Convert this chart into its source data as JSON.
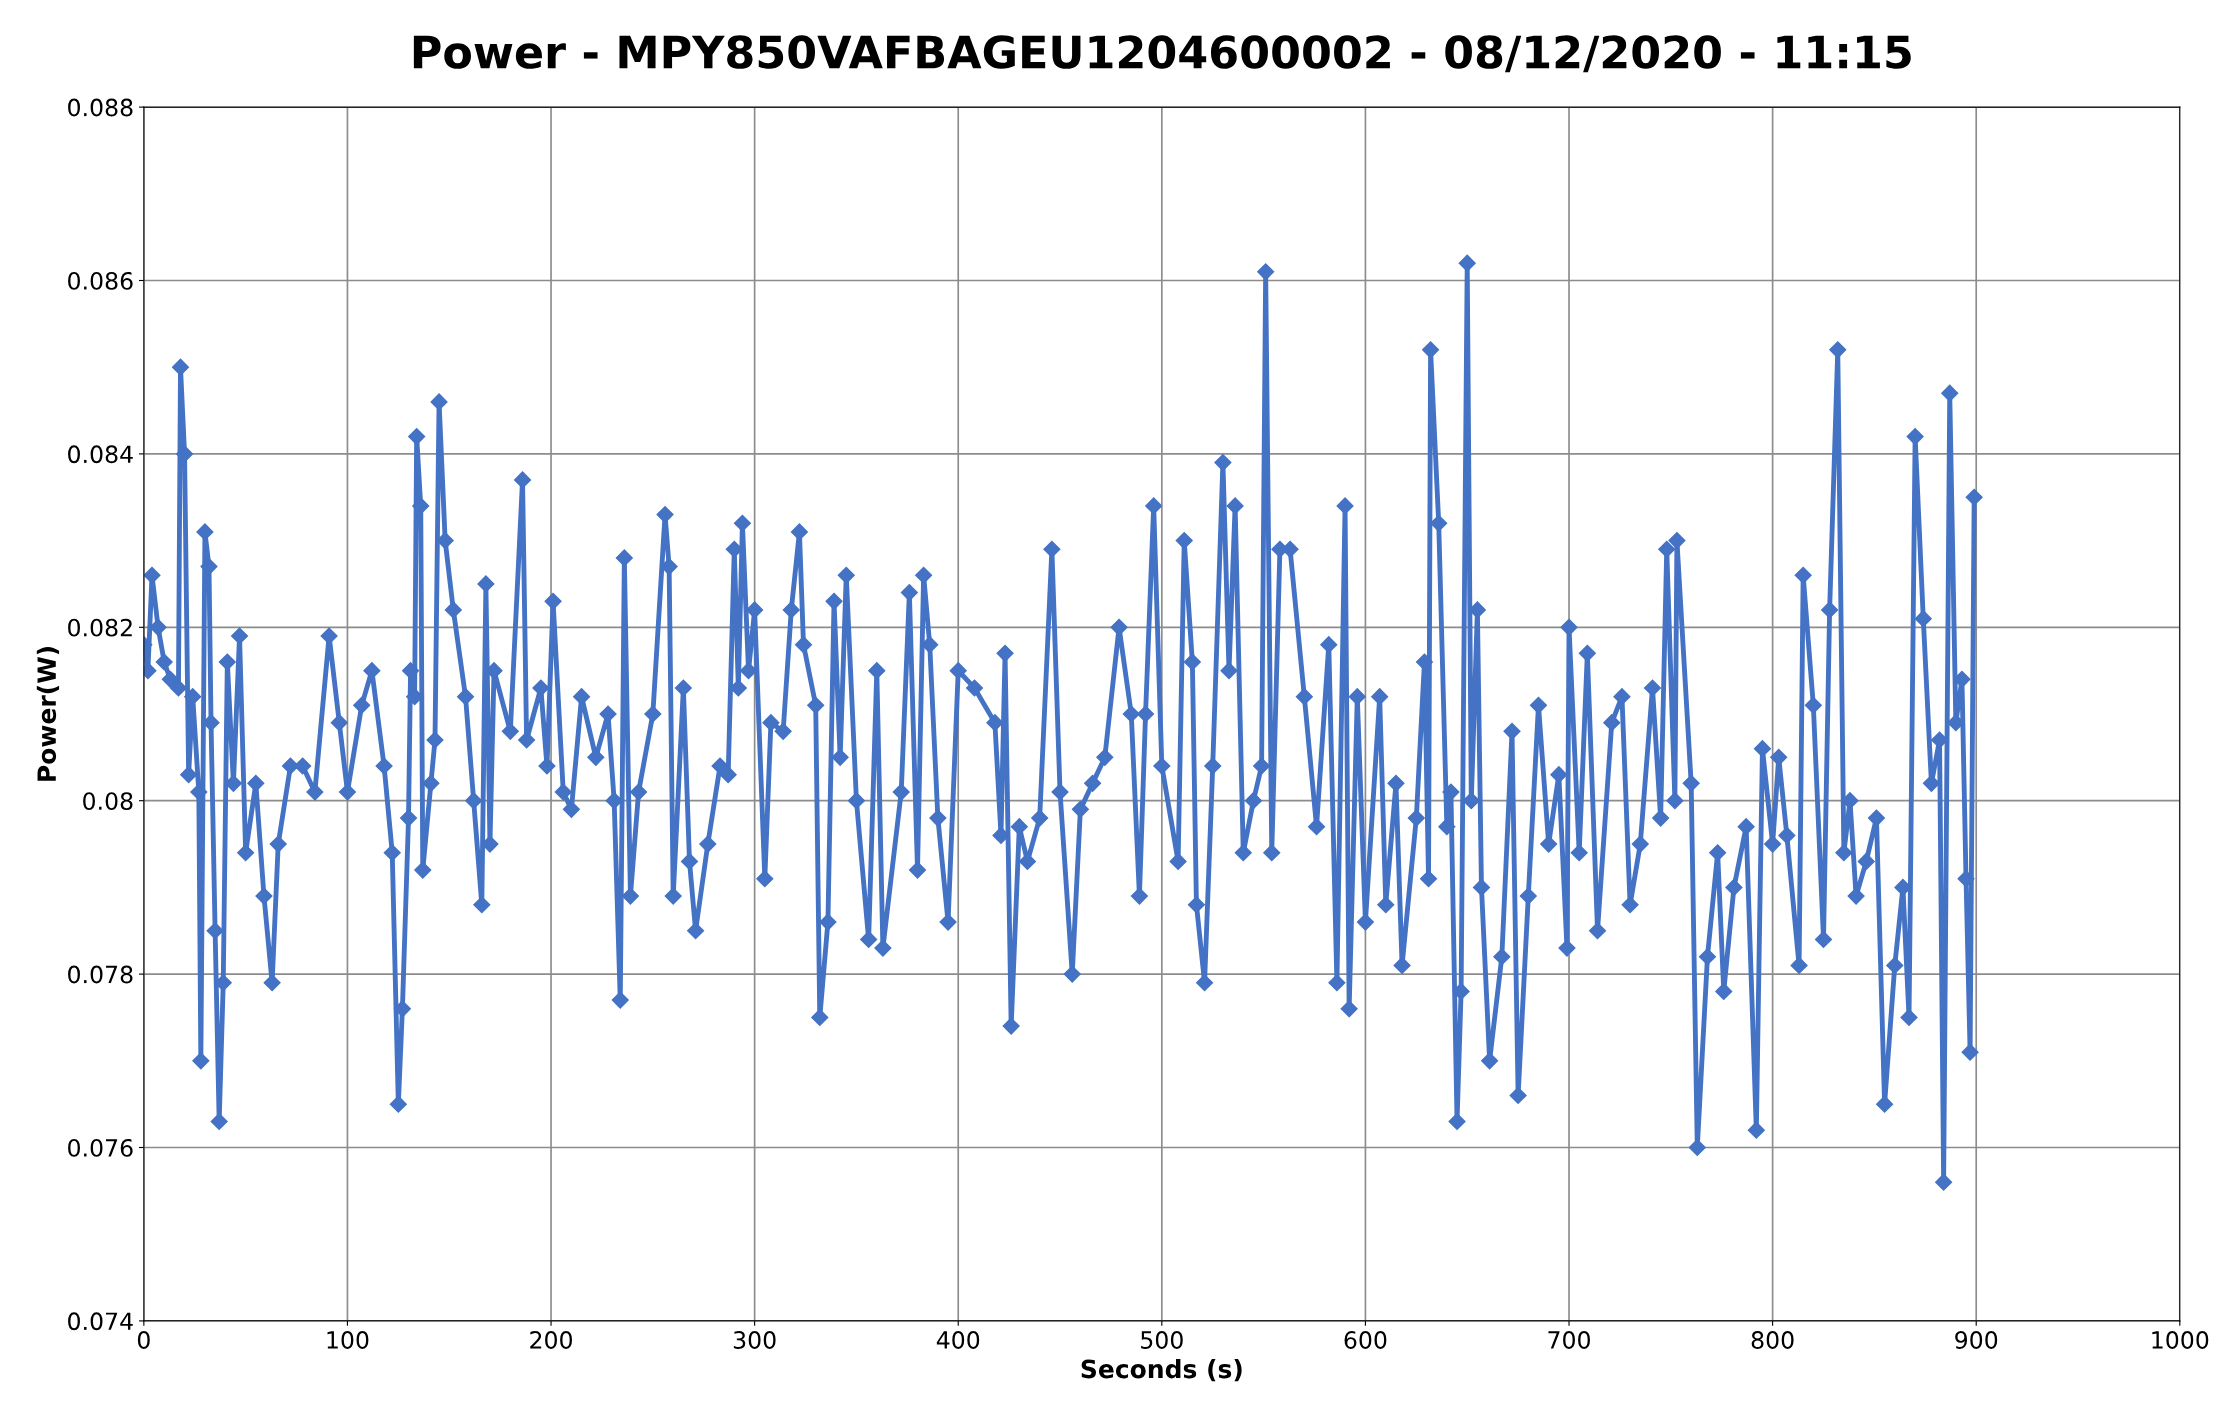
{
  "chart_data": {
    "type": "line",
    "title": "Power - MPY850VAFBAGEU1204600002 - 08/12/2020 - 11:15",
    "xlabel": "Seconds (s)",
    "ylabel": "Power(W)",
    "xlim": [
      0,
      1000
    ],
    "xticks": [
      0,
      100,
      200,
      300,
      400,
      500,
      600,
      700,
      800,
      900,
      1000
    ],
    "ylim": [
      0.074,
      0.088
    ],
    "yticks": [
      0.074,
      0.076,
      0.078,
      0.08,
      0.082,
      0.084,
      0.086,
      0.088
    ],
    "grid": true,
    "marker": "diamond",
    "line_style": "solid",
    "legend": false,
    "series": [
      {
        "color": "#4472c4",
        "x": [
          0,
          2,
          4,
          7,
          10,
          13,
          17,
          18,
          20,
          22,
          24,
          27,
          28,
          30,
          32,
          33,
          35,
          37,
          39,
          41,
          44,
          47,
          50,
          55,
          59,
          63,
          66,
          72,
          78,
          84,
          91,
          96,
          100,
          107,
          112,
          118,
          122,
          125,
          127,
          130,
          131,
          133,
          134,
          136,
          137,
          141,
          143,
          145,
          148,
          152,
          158,
          162,
          166,
          168,
          170,
          172,
          180,
          186,
          188,
          195,
          198,
          201,
          206,
          210,
          215,
          222,
          228,
          231,
          234,
          236,
          239,
          243,
          250,
          256,
          258,
          260,
          265,
          268,
          271,
          277,
          283,
          287,
          290,
          292,
          294,
          297,
          300,
          305,
          308,
          314,
          318,
          322,
          324,
          330,
          332,
          336,
          339,
          342,
          345,
          350,
          356,
          360,
          363,
          372,
          376,
          380,
          383,
          386,
          390,
          395,
          400,
          408,
          418,
          421,
          423,
          426,
          430,
          434,
          440,
          446,
          450,
          456,
          460,
          466,
          472,
          479,
          485,
          489,
          492,
          496,
          500,
          508,
          511,
          515,
          517,
          521,
          525,
          530,
          533,
          536,
          540,
          545,
          549,
          551,
          554,
          558,
          563,
          570,
          576,
          582,
          586,
          590,
          592,
          596,
          600,
          607,
          610,
          615,
          618,
          625,
          629,
          631,
          632,
          636,
          640,
          642,
          645,
          647,
          650,
          652,
          655,
          657,
          661,
          667,
          672,
          675,
          680,
          685,
          690,
          695,
          699,
          700,
          705,
          709,
          714,
          721,
          726,
          730,
          735,
          741,
          745,
          748,
          752,
          753,
          760,
          763,
          768,
          773,
          776,
          781,
          787,
          792,
          795,
          800,
          803,
          807,
          813,
          815,
          820,
          825,
          828,
          832,
          835,
          838,
          841,
          846,
          851,
          855,
          860,
          864,
          867,
          870,
          874,
          878,
          882,
          884,
          887,
          890,
          893,
          895,
          897,
          899
        ],
        "values": [
          0.0818,
          0.0815,
          0.0826,
          0.082,
          0.0816,
          0.0814,
          0.0813,
          0.085,
          0.084,
          0.0803,
          0.0812,
          0.0801,
          0.077,
          0.0831,
          0.0827,
          0.0809,
          0.0785,
          0.0763,
          0.0779,
          0.0816,
          0.0802,
          0.0819,
          0.0794,
          0.0802,
          0.0789,
          0.0779,
          0.0795,
          0.0804,
          0.0804,
          0.0801,
          0.0819,
          0.0809,
          0.0801,
          0.0811,
          0.0815,
          0.0804,
          0.0794,
          0.0765,
          0.0776,
          0.0798,
          0.0815,
          0.0812,
          0.0842,
          0.0834,
          0.0792,
          0.0802,
          0.0807,
          0.0846,
          0.083,
          0.0822,
          0.0812,
          0.08,
          0.0788,
          0.0825,
          0.0795,
          0.0815,
          0.0808,
          0.0837,
          0.0807,
          0.0813,
          0.0804,
          0.0823,
          0.0801,
          0.0799,
          0.0812,
          0.0805,
          0.081,
          0.08,
          0.0777,
          0.0828,
          0.0789,
          0.0801,
          0.081,
          0.0833,
          0.0827,
          0.0789,
          0.0813,
          0.0793,
          0.0785,
          0.0795,
          0.0804,
          0.0803,
          0.0829,
          0.0813,
          0.0832,
          0.0815,
          0.0822,
          0.0791,
          0.0809,
          0.0808,
          0.0822,
          0.0831,
          0.0818,
          0.0811,
          0.0775,
          0.0786,
          0.0823,
          0.0805,
          0.0826,
          0.08,
          0.0784,
          0.0815,
          0.0783,
          0.0801,
          0.0824,
          0.0792,
          0.0826,
          0.0818,
          0.0798,
          0.0786,
          0.0815,
          0.0813,
          0.0809,
          0.0796,
          0.0817,
          0.0774,
          0.0797,
          0.0793,
          0.0798,
          0.0829,
          0.0801,
          0.078,
          0.0799,
          0.0802,
          0.0805,
          0.082,
          0.081,
          0.0789,
          0.081,
          0.0834,
          0.0804,
          0.0793,
          0.083,
          0.0816,
          0.0788,
          0.0779,
          0.0804,
          0.0839,
          0.0815,
          0.0834,
          0.0794,
          0.08,
          0.0804,
          0.0861,
          0.0794,
          0.0829,
          0.0829,
          0.0812,
          0.0797,
          0.0818,
          0.0779,
          0.0834,
          0.0776,
          0.0812,
          0.0786,
          0.0812,
          0.0788,
          0.0802,
          0.0781,
          0.0798,
          0.0816,
          0.0791,
          0.0852,
          0.0832,
          0.0797,
          0.0801,
          0.0763,
          0.0778,
          0.0862,
          0.08,
          0.0822,
          0.079,
          0.077,
          0.0782,
          0.0808,
          0.0766,
          0.0789,
          0.0811,
          0.0795,
          0.0803,
          0.0783,
          0.082,
          0.0794,
          0.0817,
          0.0785,
          0.0809,
          0.0812,
          0.0788,
          0.0795,
          0.0813,
          0.0798,
          0.0829,
          0.08,
          0.083,
          0.0802,
          0.076,
          0.0782,
          0.0794,
          0.0778,
          0.079,
          0.0797,
          0.0762,
          0.0806,
          0.0795,
          0.0805,
          0.0796,
          0.0781,
          0.0826,
          0.0811,
          0.0784,
          0.0822,
          0.0852,
          0.0794,
          0.08,
          0.0789,
          0.0793,
          0.0798,
          0.0765,
          0.0781,
          0.079,
          0.0775,
          0.0842,
          0.0821,
          0.0802,
          0.0807,
          0.0756,
          0.0847,
          0.0809,
          0.0814,
          0.0791,
          0.0771,
          0.0835
        ]
      }
    ]
  }
}
